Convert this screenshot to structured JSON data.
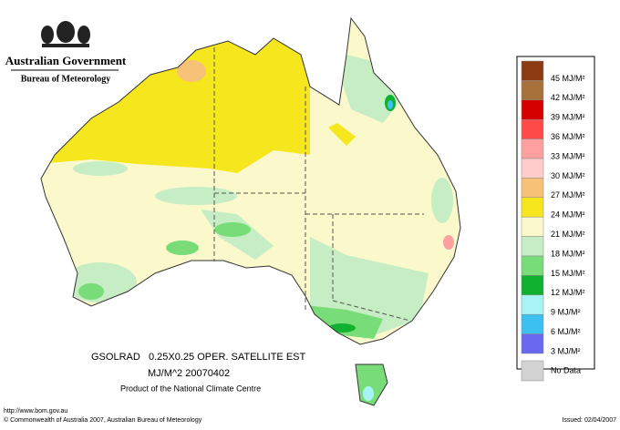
{
  "header": {
    "agency": "Australian Government",
    "bureau": "Bureau of Meteorology"
  },
  "legend": {
    "items": [
      {
        "label": "45 MJ/M²",
        "color": "#8b3a12"
      },
      {
        "label": "42 MJ/M²",
        "color": "#a8703a"
      },
      {
        "label": "39 MJ/M²",
        "color": "#d40000"
      },
      {
        "label": "36 MJ/M²",
        "color": "#ff4a4a"
      },
      {
        "label": "33 MJ/M²",
        "color": "#ffa0a0"
      },
      {
        "label": "30 MJ/M²",
        "color": "#ffcccc"
      },
      {
        "label": "27 MJ/M²",
        "color": "#f7c277"
      },
      {
        "label": "24 MJ/M²",
        "color": "#f6e61e"
      },
      {
        "label": "21 MJ/M²",
        "color": "#fbf8cc"
      },
      {
        "label": "18 MJ/M²",
        "color": "#c6edc4"
      },
      {
        "label": "15 MJ/M²",
        "color": "#78dc78"
      },
      {
        "label": "12 MJ/M²",
        "color": "#10b030"
      },
      {
        "label": "9 MJ/M²",
        "color": "#a8f4f4"
      },
      {
        "label": "6 MJ/M²",
        "color": "#3cc0f0"
      },
      {
        "label": "3 MJ/M²",
        "color": "#6868f0"
      },
      {
        "label": "No Data",
        "color": "#d2d2d2"
      }
    ]
  },
  "caption": {
    "product": "GSOLRAD",
    "grid": "0.25X0.25 OPER. SATELLITE EST",
    "units_date": "MJ/M^2  20070402",
    "source": "Product of the National Climate Centre"
  },
  "footer": {
    "url": "http://www.bom.gov.au",
    "copyright": "© Commonwealth of Australia 2007, Australian Bureau of Meteorology",
    "issued": "Issued: 02/04/2007"
  }
}
